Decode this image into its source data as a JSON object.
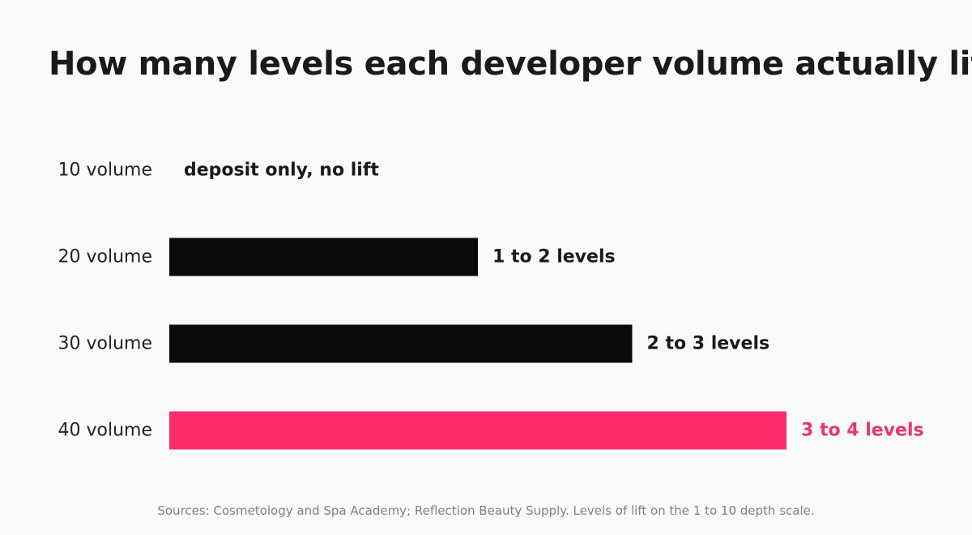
{
  "chart_data": {
    "type": "bar",
    "orientation": "horizontal",
    "title": "How many levels each developer volume actually lifts",
    "categories": [
      "10 volume",
      "20 volume",
      "30 volume",
      "40 volume"
    ],
    "values": [
      0,
      2,
      3,
      4
    ],
    "value_labels": [
      "deposit only, no lift",
      "1 to 2 levels",
      "2 to 3 levels",
      "3 to 4 levels"
    ],
    "highlight_index": 3,
    "xlim": [
      0,
      4
    ],
    "grid": false,
    "colors": {
      "bar": "#0a0a0a",
      "highlight": "#ff2e6a",
      "label": "#1a1a1a",
      "highlight_label": "#e8356e"
    }
  },
  "source": "Sources: Cosmetology and Spa Academy; Reflection Beauty Supply. Levels of lift on the 1 to 10 depth scale."
}
